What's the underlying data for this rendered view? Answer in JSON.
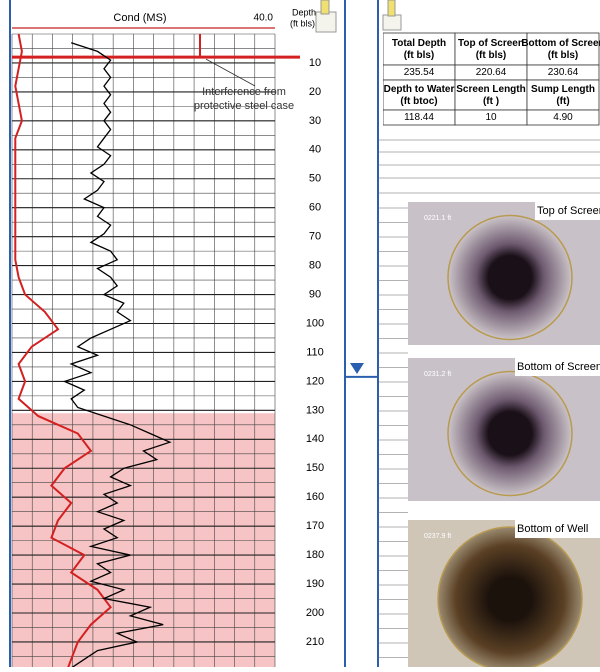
{
  "header": {
    "curve_label": "Cond  (MS)",
    "depth_label_1": "Depth",
    "depth_label_2": "(ft bls)"
  },
  "log": {
    "xlim": [
      0,
      40
    ],
    "xticks": [
      {
        "value": 40,
        "label": "40.0"
      }
    ],
    "ylim": [
      0,
      222
    ],
    "yticks": [
      10,
      20,
      30,
      40,
      50,
      60,
      70,
      80,
      90,
      100,
      110,
      120,
      130,
      140,
      150,
      160,
      170,
      180,
      190,
      200,
      210
    ],
    "shaded_from": 131,
    "interference_depth": 8,
    "annotation_1": "Interference from",
    "annotation_2": "protective steel case",
    "conductivity": {
      "color": "#000000",
      "depth": [
        3,
        6,
        9,
        12,
        15,
        18,
        21,
        24,
        27,
        30,
        33,
        36,
        39,
        42,
        45,
        48,
        51,
        54,
        57,
        60,
        63,
        66,
        69,
        72,
        75,
        78,
        81,
        84,
        87,
        90,
        93,
        96,
        99,
        102,
        105,
        108,
        111,
        114,
        117,
        120,
        123,
        126,
        129,
        132,
        135,
        138,
        141,
        144,
        147,
        150,
        153,
        156,
        159,
        162,
        165,
        168,
        171,
        174,
        177,
        180,
        183,
        186,
        189,
        192,
        195,
        198,
        201,
        204,
        207,
        210,
        213,
        216,
        219,
        222
      ],
      "values": [
        9,
        13,
        15,
        14,
        15,
        14,
        15,
        14,
        15,
        14,
        15,
        14,
        13,
        15,
        14,
        12,
        14,
        13,
        11,
        14,
        13,
        15,
        14,
        12,
        15,
        16,
        13,
        15,
        16,
        14,
        17,
        16,
        18,
        15,
        12,
        10,
        13,
        9,
        12,
        8,
        11,
        9,
        10,
        14,
        18,
        21,
        24,
        20,
        22,
        17,
        15,
        18,
        14,
        16,
        13,
        17,
        14,
        16,
        12,
        18,
        13,
        15,
        12,
        17,
        14,
        21,
        18,
        23,
        16,
        19,
        13,
        11,
        9,
        10
      ]
    },
    "second_curve": {
      "color": "#d42020",
      "depth": [
        0,
        6,
        12,
        18,
        24,
        30,
        36,
        42,
        48,
        54,
        60,
        66,
        72,
        78,
        84,
        90,
        96,
        102,
        108,
        114,
        120,
        126,
        132,
        138,
        144,
        150,
        156,
        162,
        168,
        174,
        180,
        186,
        192,
        198,
        204,
        210,
        216,
        222
      ],
      "values": [
        1,
        1.5,
        1,
        0.5,
        1,
        1.5,
        0.5,
        0.5,
        0.5,
        0.5,
        0.5,
        0.5,
        0.5,
        0.5,
        1,
        2,
        5,
        7,
        3,
        1,
        2,
        1,
        4,
        10,
        12,
        8,
        6,
        9,
        7,
        6,
        11,
        9,
        13,
        15,
        12,
        10,
        9,
        8
      ]
    }
  },
  "table": {
    "rows": [
      [
        "Total Depth (ft bls)",
        "Top of Screen (ft bls)",
        "Bottom of Screen (ft bls)"
      ],
      [
        "235.54",
        "220.64",
        "230.64"
      ],
      [
        "Depth to Water (ft btoc)",
        "Screen Length (ft )",
        "Sump Length (ft)"
      ],
      [
        "118.44",
        "10",
        "4.90"
      ]
    ]
  },
  "photos": [
    {
      "caption": "Top of Screen",
      "stamp": "0221.1 ft"
    },
    {
      "caption": "Bottom of Screen",
      "stamp": "0231.2 ft"
    },
    {
      "caption": "Bottom of Well",
      "stamp": "0237.9 ft"
    }
  ]
}
